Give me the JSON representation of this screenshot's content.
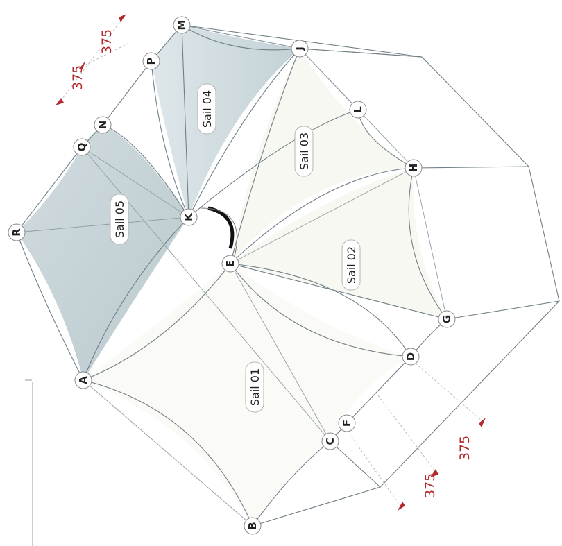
{
  "nodes": [
    {
      "id": "A",
      "label": "A"
    },
    {
      "id": "B",
      "label": "B"
    },
    {
      "id": "C",
      "label": "C"
    },
    {
      "id": "D",
      "label": "D"
    },
    {
      "id": "E",
      "label": "E"
    },
    {
      "id": "F",
      "label": "F"
    },
    {
      "id": "G",
      "label": "G"
    },
    {
      "id": "H",
      "label": "H"
    },
    {
      "id": "J",
      "label": "J"
    },
    {
      "id": "K",
      "label": "K"
    },
    {
      "id": "L",
      "label": "L"
    },
    {
      "id": "M",
      "label": "M"
    },
    {
      "id": "N",
      "label": "N"
    },
    {
      "id": "P",
      "label": "P"
    },
    {
      "id": "Q",
      "label": "Q"
    },
    {
      "id": "R",
      "label": "R"
    }
  ],
  "sails": [
    {
      "id": "sail-01",
      "label": "Sail 01",
      "fill": "#fafaf6"
    },
    {
      "id": "sail-02",
      "label": "Sail 02",
      "fill": "#fafaf6"
    },
    {
      "id": "sail-03",
      "label": "Sail 03",
      "fill": "#fafaf6"
    },
    {
      "id": "sail-04",
      "label": "Sail 04",
      "fill": "#c5d3d8"
    },
    {
      "id": "sail-05",
      "label": "Sail 05",
      "fill": "#bccbd0"
    }
  ],
  "dimensions": {
    "top_left": [
      "375",
      "375"
    ],
    "bottom_right": [
      "375",
      "375"
    ]
  },
  "colors": {
    "edge": "#6f7f86",
    "dimension": "#b22a2e",
    "connector": "#111111"
  }
}
